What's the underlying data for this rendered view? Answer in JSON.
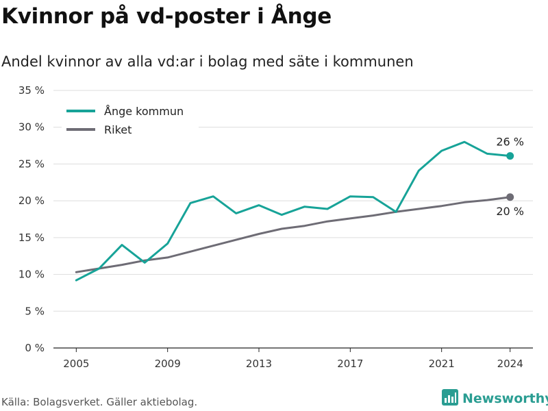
{
  "header": {
    "title": "Kvinnor på vd-poster i Ånge",
    "subtitle": "Andel kvinnor av alla vd:ar i bolag med säte i kommunen"
  },
  "footer": {
    "source": "Källa: Bolagsverket. Gäller aktiebolag.",
    "brand": "Newsworthy",
    "brand_icon": "bar-chart-logo-icon",
    "brand_color": "#2a9d92"
  },
  "chart_data": {
    "type": "line",
    "title": "Kvinnor på vd-poster i Ånge",
    "subtitle": "Andel kvinnor av alla vd:ar i bolag med säte i kommunen",
    "xlabel": "",
    "ylabel": "",
    "x": [
      2005,
      2006,
      2007,
      2008,
      2009,
      2010,
      2011,
      2012,
      2013,
      2014,
      2015,
      2016,
      2017,
      2018,
      2019,
      2020,
      2021,
      2022,
      2023,
      2024
    ],
    "x_ticks": [
      "2005",
      "2009",
      "2013",
      "2017",
      "2021",
      "2024"
    ],
    "ylim": [
      0,
      35
    ],
    "y_ticks": [
      "0 %",
      "5 %",
      "10 %",
      "15 %",
      "20 %",
      "25 %",
      "30 %",
      "35 %"
    ],
    "grid": true,
    "legend_position": "top-left",
    "series": [
      {
        "name": "Ånge kommun",
        "color": "#17a398",
        "values": [
          9.2,
          10.8,
          14.0,
          11.6,
          14.2,
          19.7,
          20.6,
          18.3,
          19.4,
          18.1,
          19.2,
          18.9,
          20.6,
          20.5,
          18.5,
          24.1,
          26.8,
          28.0,
          26.4,
          26.1
        ],
        "end_label": "26 %"
      },
      {
        "name": "Riket",
        "color": "#6e6c75",
        "values": [
          10.3,
          10.8,
          11.3,
          11.9,
          12.3,
          13.1,
          13.9,
          14.7,
          15.5,
          16.2,
          16.6,
          17.2,
          17.6,
          18.0,
          18.5,
          18.9,
          19.3,
          19.8,
          20.1,
          20.5
        ],
        "end_label": "20 %"
      }
    ]
  }
}
